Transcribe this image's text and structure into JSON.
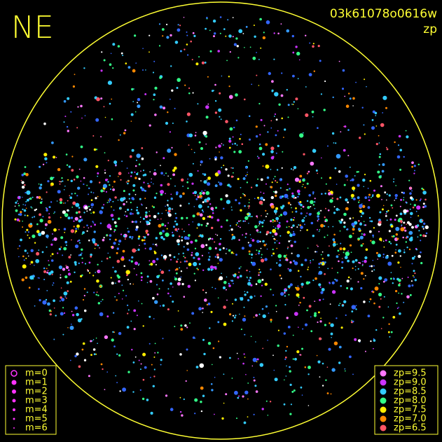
{
  "header": {
    "direction": "NE",
    "frame_id": "03k61078o0616w",
    "quantity": "zp"
  },
  "magnitude_legend": {
    "items": [
      "m=0",
      "m=1",
      "m=2",
      "m=3",
      "m=4",
      "m=5",
      "m=6"
    ],
    "color": "#ff33ff"
  },
  "zp_legend": {
    "items": [
      {
        "label": "zp=9.5",
        "color": "#ff77ff"
      },
      {
        "label": "zp=9.0",
        "color": "#cc33ff"
      },
      {
        "label": "zp=8.5",
        "color": "#33ccff"
      },
      {
        "label": "zp=8.0",
        "color": "#33ff88"
      },
      {
        "label": "zp=7.5",
        "color": "#ffee00"
      },
      {
        "label": "zp=7.0",
        "color": "#ff8800"
      },
      {
        "label": "zp=6.5",
        "color": "#ff5566"
      }
    ]
  }
}
